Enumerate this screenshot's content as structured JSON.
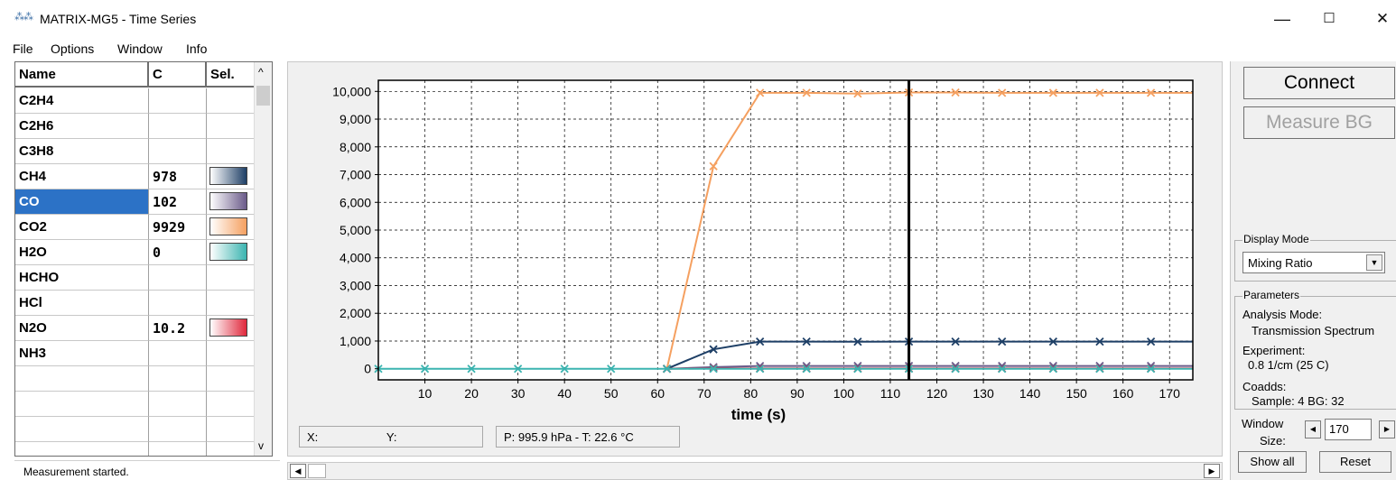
{
  "window": {
    "icon": "matrix-app-icon",
    "title": "MATRIX-MG5 - Time Series",
    "minimize": "—",
    "maximize": "☐",
    "close": "✕"
  },
  "menu": [
    "File",
    "Options",
    "Window",
    "Info"
  ],
  "table": {
    "headers": [
      "Name",
      "C",
      "Sel."
    ],
    "rows": [
      {
        "name": "C2H4",
        "c": "",
        "color": ""
      },
      {
        "name": "C2H6",
        "c": "",
        "color": ""
      },
      {
        "name": "C3H8",
        "c": "",
        "color": ""
      },
      {
        "name": "CH4",
        "c": "978",
        "color": "#1e3f66"
      },
      {
        "name": "CO",
        "c": "102",
        "color": "#6b5b8a"
      },
      {
        "name": "CO2",
        "c": "9929",
        "color": "#f5a060"
      },
      {
        "name": "H2O",
        "c": "0",
        "color": "#3bb4b0"
      },
      {
        "name": "HCHO",
        "c": "",
        "color": ""
      },
      {
        "name": "HCl",
        "c": "",
        "color": ""
      },
      {
        "name": "N2O",
        "c": "10.2",
        "color": "#e0283c"
      },
      {
        "name": "NH3",
        "c": "",
        "color": ""
      },
      {
        "name": "",
        "c": "",
        "color": ""
      },
      {
        "name": "",
        "c": "",
        "color": ""
      },
      {
        "name": "",
        "c": "",
        "color": ""
      },
      {
        "name": "",
        "c": "",
        "color": ""
      }
    ],
    "selected_row": "CO",
    "selected_color": "#2c72c6",
    "scroll_up": "^",
    "scroll_down": "v"
  },
  "status": {
    "text": "Measurement started."
  },
  "chart_data": {
    "type": "line",
    "xlabel": "time (s)",
    "ylabel": "",
    "xlim": [
      0,
      175
    ],
    "ylim": [
      -400,
      10400
    ],
    "x_ticks": [
      10,
      20,
      30,
      40,
      50,
      60,
      70,
      80,
      90,
      100,
      110,
      120,
      130,
      140,
      150,
      160,
      170
    ],
    "y_ticks": [
      0,
      1000,
      2000,
      3000,
      4000,
      5000,
      6000,
      7000,
      8000,
      9000,
      10000
    ],
    "y_tick_labels": [
      "0",
      "1,000",
      "2,000",
      "3,000",
      "4,000",
      "5,000",
      "6,000",
      "7,000",
      "8,000",
      "9,000",
      "10,000"
    ],
    "grid": true,
    "cursor_x": 114,
    "marker": "x",
    "series": [
      {
        "color": "#f5a060",
        "x": [
          62,
          72,
          82,
          92,
          103,
          114,
          124,
          134,
          145,
          155,
          166,
          175
        ],
        "y": [
          0,
          7300,
          9950,
          9950,
          9920,
          9960,
          9960,
          9950,
          9950,
          9950,
          9950,
          9950
        ]
      },
      {
        "color": "#1e3f66",
        "x": [
          62,
          72,
          82,
          92,
          103,
          114,
          124,
          134,
          145,
          155,
          166,
          175
        ],
        "y": [
          0,
          700,
          980,
          980,
          975,
          980,
          978,
          978,
          978,
          978,
          978,
          978
        ]
      },
      {
        "color": "#6b5b8a",
        "x": [
          62,
          72,
          82,
          92,
          103,
          114,
          124,
          134,
          145,
          155,
          166,
          175
        ],
        "y": [
          0,
          60,
          100,
          100,
          102,
          102,
          102,
          102,
          102,
          102,
          102,
          102
        ]
      },
      {
        "color": "#e0283c",
        "x": [
          62,
          72,
          82,
          92,
          103,
          114,
          124,
          134,
          145,
          155,
          166,
          175
        ],
        "y": [
          0,
          10,
          10,
          10,
          10,
          10,
          10,
          10,
          10,
          10,
          10,
          10
        ]
      },
      {
        "color": "#3bb4b0",
        "x": [
          0,
          10,
          20,
          30,
          40,
          50,
          62,
          72,
          82,
          92,
          103,
          114,
          124,
          134,
          145,
          155,
          166,
          175
        ],
        "y": [
          0,
          0,
          0,
          0,
          0,
          0,
          0,
          0,
          0,
          0,
          0,
          0,
          0,
          0,
          0,
          0,
          0,
          0
        ]
      }
    ]
  },
  "readouts": {
    "x": "X:",
    "y": "Y:",
    "pt": "P: 995.9 hPa - T: 22.6 °C"
  },
  "right": {
    "connect": "Connect",
    "measure_bg": "Measure BG",
    "display_mode_title": "Display Mode",
    "display_mode_value": "Mixing Ratio",
    "parameters_title": "Parameters",
    "analysis_mode_label": "Analysis Mode:",
    "analysis_mode_value": "Transmission Spectrum",
    "experiment_label": "Experiment:",
    "experiment_value": "0.8 1/cm (25 C)",
    "coadds_label": "Coadds:",
    "coadds_value": "Sample: 4  BG: 32",
    "window_label_1": "Window",
    "window_label_2": "Size:",
    "window_size": "170",
    "show_all": "Show all",
    "reset": "Reset"
  }
}
